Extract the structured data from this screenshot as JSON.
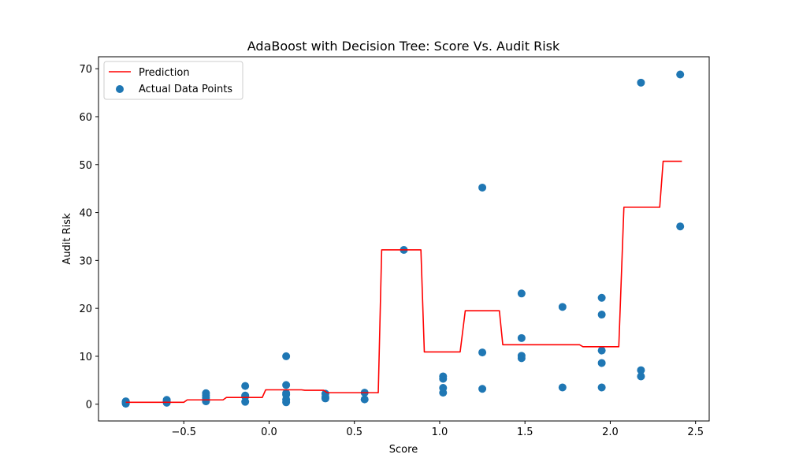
{
  "chart_data": {
    "type": "scatter",
    "title": "AdaBoost with Decision Tree: Score Vs. Audit Risk",
    "xlabel": "Score",
    "ylabel": "Audit Risk",
    "xlim": [
      -1.0,
      2.58
    ],
    "ylim": [
      -3.5,
      72.5
    ],
    "xticks": [
      -0.5,
      0.0,
      0.5,
      1.0,
      1.5,
      2.0,
      2.5
    ],
    "xtick_labels": [
      "−0.5",
      "0.0",
      "0.5",
      "1.0",
      "1.5",
      "2.0",
      "2.5"
    ],
    "yticks": [
      0,
      10,
      20,
      30,
      40,
      50,
      60,
      70
    ],
    "ytick_labels": [
      "0",
      "10",
      "20",
      "30",
      "40",
      "50",
      "60",
      "70"
    ],
    "grid": false,
    "legend_position": "top-left",
    "series": [
      {
        "name": "Prediction",
        "kind": "line",
        "color": "#ff0000",
        "x": [
          -0.84,
          -0.5,
          -0.48,
          -0.27,
          -0.25,
          -0.04,
          -0.02,
          0.19,
          0.21,
          0.32,
          0.34,
          0.55,
          0.57,
          0.64,
          0.66,
          0.89,
          0.91,
          1.12,
          1.15,
          1.35,
          1.37,
          1.82,
          1.84,
          2.05,
          2.08,
          2.29,
          2.31,
          2.42
        ],
        "y": [
          0.4,
          0.4,
          0.9,
          0.9,
          1.4,
          1.4,
          3.0,
          3.0,
          2.9,
          2.9,
          2.4,
          2.4,
          2.4,
          2.4,
          32.2,
          32.2,
          10.9,
          10.9,
          19.5,
          19.5,
          12.4,
          12.4,
          12.0,
          12.0,
          41.1,
          41.1,
          50.7,
          50.7
        ]
      },
      {
        "name": "Actual Data Points",
        "kind": "scatter",
        "color": "#1f77b4",
        "points": [
          [
            -0.84,
            0.1
          ],
          [
            -0.84,
            0.2
          ],
          [
            -0.84,
            0.3
          ],
          [
            -0.84,
            0.4
          ],
          [
            -0.84,
            0.5
          ],
          [
            -0.84,
            0.6
          ],
          [
            -0.6,
            0.3
          ],
          [
            -0.6,
            0.6
          ],
          [
            -0.6,
            0.9
          ],
          [
            -0.37,
            0.6
          ],
          [
            -0.37,
            0.9
          ],
          [
            -0.37,
            1.3
          ],
          [
            -0.37,
            1.8
          ],
          [
            -0.37,
            2.3
          ],
          [
            -0.14,
            0.5
          ],
          [
            -0.14,
            1.6
          ],
          [
            -0.14,
            1.8
          ],
          [
            -0.14,
            3.8
          ],
          [
            0.1,
            0.4
          ],
          [
            0.1,
            1.0
          ],
          [
            0.1,
            2.0
          ],
          [
            0.1,
            2.3
          ],
          [
            0.1,
            4.0
          ],
          [
            0.1,
            10.0
          ],
          [
            0.33,
            1.2
          ],
          [
            0.33,
            1.5
          ],
          [
            0.33,
            2.2
          ],
          [
            0.56,
            1.0
          ],
          [
            0.56,
            2.4
          ],
          [
            0.79,
            32.2
          ],
          [
            1.02,
            2.4
          ],
          [
            1.02,
            3.4
          ],
          [
            1.02,
            5.3
          ],
          [
            1.02,
            5.8
          ],
          [
            1.25,
            3.2
          ],
          [
            1.25,
            10.8
          ],
          [
            1.25,
            45.2
          ],
          [
            1.48,
            9.6
          ],
          [
            1.48,
            10.1
          ],
          [
            1.48,
            13.8
          ],
          [
            1.48,
            23.1
          ],
          [
            1.72,
            3.5
          ],
          [
            1.72,
            20.3
          ],
          [
            1.95,
            3.5
          ],
          [
            1.95,
            8.6
          ],
          [
            1.95,
            11.2
          ],
          [
            1.95,
            18.7
          ],
          [
            1.95,
            22.2
          ],
          [
            2.18,
            5.8
          ],
          [
            2.18,
            7.1
          ],
          [
            2.18,
            67.1
          ],
          [
            2.41,
            37.1
          ],
          [
            2.41,
            68.8
          ]
        ]
      }
    ]
  }
}
